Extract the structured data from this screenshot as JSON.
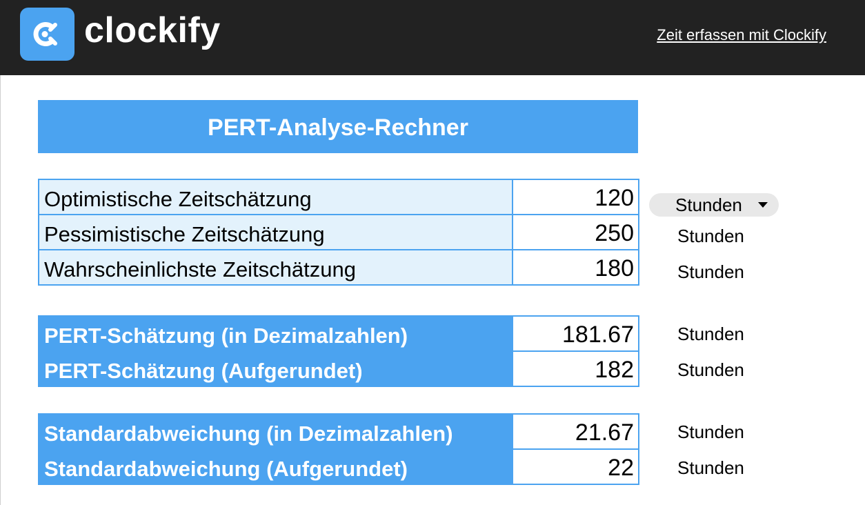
{
  "header": {
    "brand": "clockify",
    "link": "Zeit erfassen mit Clockify"
  },
  "title": "PERT-Analyse-Rechner",
  "unit_selected": "Stunden",
  "inputs": [
    {
      "label": "Optimistische Zeitschätzung",
      "value": "120",
      "unit": "Stunden"
    },
    {
      "label": "Pessimistische Zeitschätzung",
      "value": "250",
      "unit": "Stunden"
    },
    {
      "label": "Wahrscheinlichste Zeitschätzung",
      "value": "180",
      "unit": "Stunden"
    }
  ],
  "pert": [
    {
      "label": "PERT-Schätzung (in Dezimalzahlen)",
      "value": "181.67",
      "unit": "Stunden"
    },
    {
      "label": "PERT-Schätzung (Aufgerundet)",
      "value": "182",
      "unit": "Stunden"
    }
  ],
  "std": [
    {
      "label": "Standardabweichung (in Dezimalzahlen)",
      "value": "21.67",
      "unit": "Stunden"
    },
    {
      "label": "Standardabweichung (Aufgerundet)",
      "value": "22",
      "unit": "Stunden"
    }
  ],
  "colors": {
    "header_bg": "#222222",
    "accent": "#4ba3f0",
    "input_label_bg": "#e3f2fc"
  }
}
